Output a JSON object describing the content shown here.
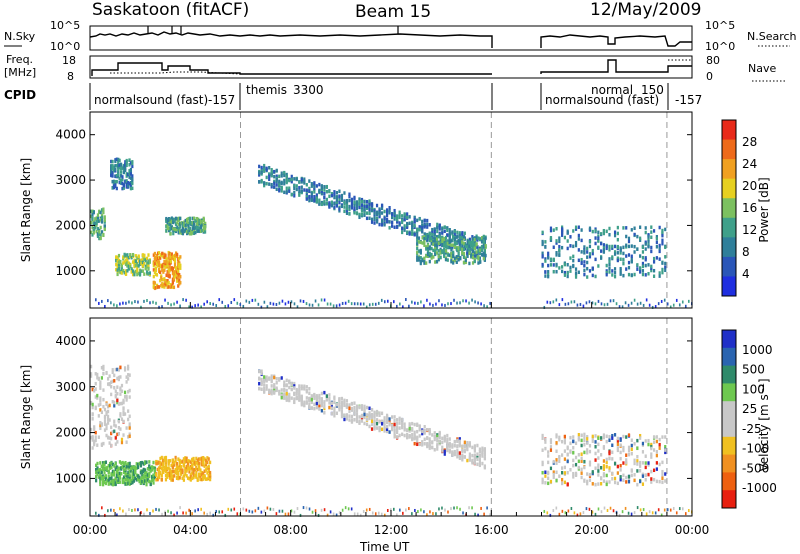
{
  "header": {
    "station": "Saskatoon (fitACF)",
    "beam": "Beam 15",
    "date": "12/May/2009"
  },
  "noise_panel": {
    "left_label": "N.Sky",
    "right_label": "N.Search",
    "left_ticks": [
      "10^5",
      "10^0"
    ],
    "right_ticks": [
      "10^5",
      "10^0"
    ]
  },
  "freq_panel": {
    "left_label_1": "Freq.",
    "left_label_2": "[MHz]",
    "right_label": "Nave",
    "left_ticks": [
      "18",
      "8"
    ],
    "right_ticks": [
      "80",
      "0"
    ]
  },
  "cpid_panel": {
    "label": "CPID",
    "segments": [
      {
        "name": "normalsound (fast)",
        "code": "-157"
      },
      {
        "name": "themis",
        "code": "3300"
      },
      {
        "name": "normal",
        "code": "150"
      },
      {
        "name": "normalsound (fast)",
        "code": "-157"
      }
    ]
  },
  "chart_data": [
    {
      "type": "heatmap",
      "title": "",
      "ylabel": "Slant Range [km]",
      "xlabel": "",
      "xlim_hours": [
        0,
        24
      ],
      "ylim_km": [
        180,
        4500
      ],
      "yticks": [
        "1000",
        "2000",
        "3000",
        "4000"
      ],
      "colorbar": {
        "label": "Power [dB]",
        "ticks": [
          "4",
          "8",
          "12",
          "16",
          "20",
          "24",
          "28"
        ],
        "range": [
          0,
          30
        ]
      },
      "echo_regions": [
        {
          "t": [
            0.0,
            0.6
          ],
          "r": [
            1800,
            2400
          ],
          "value": "mid-high"
        },
        {
          "t": [
            0.8,
            1.6
          ],
          "r": [
            2900,
            3500
          ],
          "value": "mid"
        },
        {
          "t": [
            1.0,
            2.4
          ],
          "r": [
            1000,
            1400
          ],
          "value": "high"
        },
        {
          "t": [
            2.5,
            3.6
          ],
          "r": [
            700,
            1400
          ],
          "value": "very-high"
        },
        {
          "t": [
            3.0,
            4.6
          ],
          "r": [
            1900,
            2200
          ],
          "value": "mid"
        },
        {
          "t": [
            6.7,
            15.8
          ],
          "r": [
            1300,
            3400
          ],
          "value": "low-mid arc"
        },
        {
          "t": [
            13.0,
            15.8
          ],
          "r": [
            1200,
            1800
          ],
          "value": "mid-high"
        },
        {
          "t": [
            18.0,
            23.0
          ],
          "r": [
            900,
            2000
          ],
          "value": "low-mid"
        }
      ]
    },
    {
      "type": "heatmap",
      "title": "",
      "ylabel": "Slant Range [km]",
      "xlabel": "Time UT",
      "xlim_hours": [
        0,
        24
      ],
      "ylim_km": [
        180,
        4500
      ],
      "yticks": [
        "1000",
        "2000",
        "3000",
        "4000"
      ],
      "xticks": [
        "00:00",
        "04:00",
        "08:00",
        "12:00",
        "16:00",
        "20:00",
        "00:00"
      ],
      "colorbar": {
        "label": "Velocity [m s⁻¹]",
        "ticks": [
          "1000",
          "500",
          "100",
          "25",
          "-25",
          "-100",
          "-500",
          "-1000"
        ]
      },
      "echo_regions": [
        {
          "t": [
            0.0,
            1.6
          ],
          "r": [
            1700,
            3500
          ],
          "value": "near zero (grey)"
        },
        {
          "t": [
            0.2,
            2.6
          ],
          "r": [
            900,
            1400
          ],
          "value": "positive (green)"
        },
        {
          "t": [
            2.6,
            4.8
          ],
          "r": [
            1000,
            1500
          ],
          "value": "negative (orange)"
        },
        {
          "t": [
            6.7,
            15.8
          ],
          "r": [
            1300,
            3400
          ],
          "value": "near zero (grey)"
        },
        {
          "t": [
            18.0,
            23.0
          ],
          "r": [
            900,
            2000
          ],
          "value": "mixed"
        }
      ]
    }
  ],
  "colors": {
    "power": [
      "#1f2fe0",
      "#2a56b8",
      "#2f7f9a",
      "#3fa08a",
      "#7cc060",
      "#e6d020",
      "#f0a020",
      "#ee6a1a",
      "#e82a1a"
    ],
    "velocity": [
      "#2030c8",
      "#2a64b0",
      "#2f8a6a",
      "#6ec850",
      "#c8c8c8",
      "#c8c8c8",
      "#f0c020",
      "#f09020",
      "#ee6010",
      "#e82010"
    ]
  }
}
